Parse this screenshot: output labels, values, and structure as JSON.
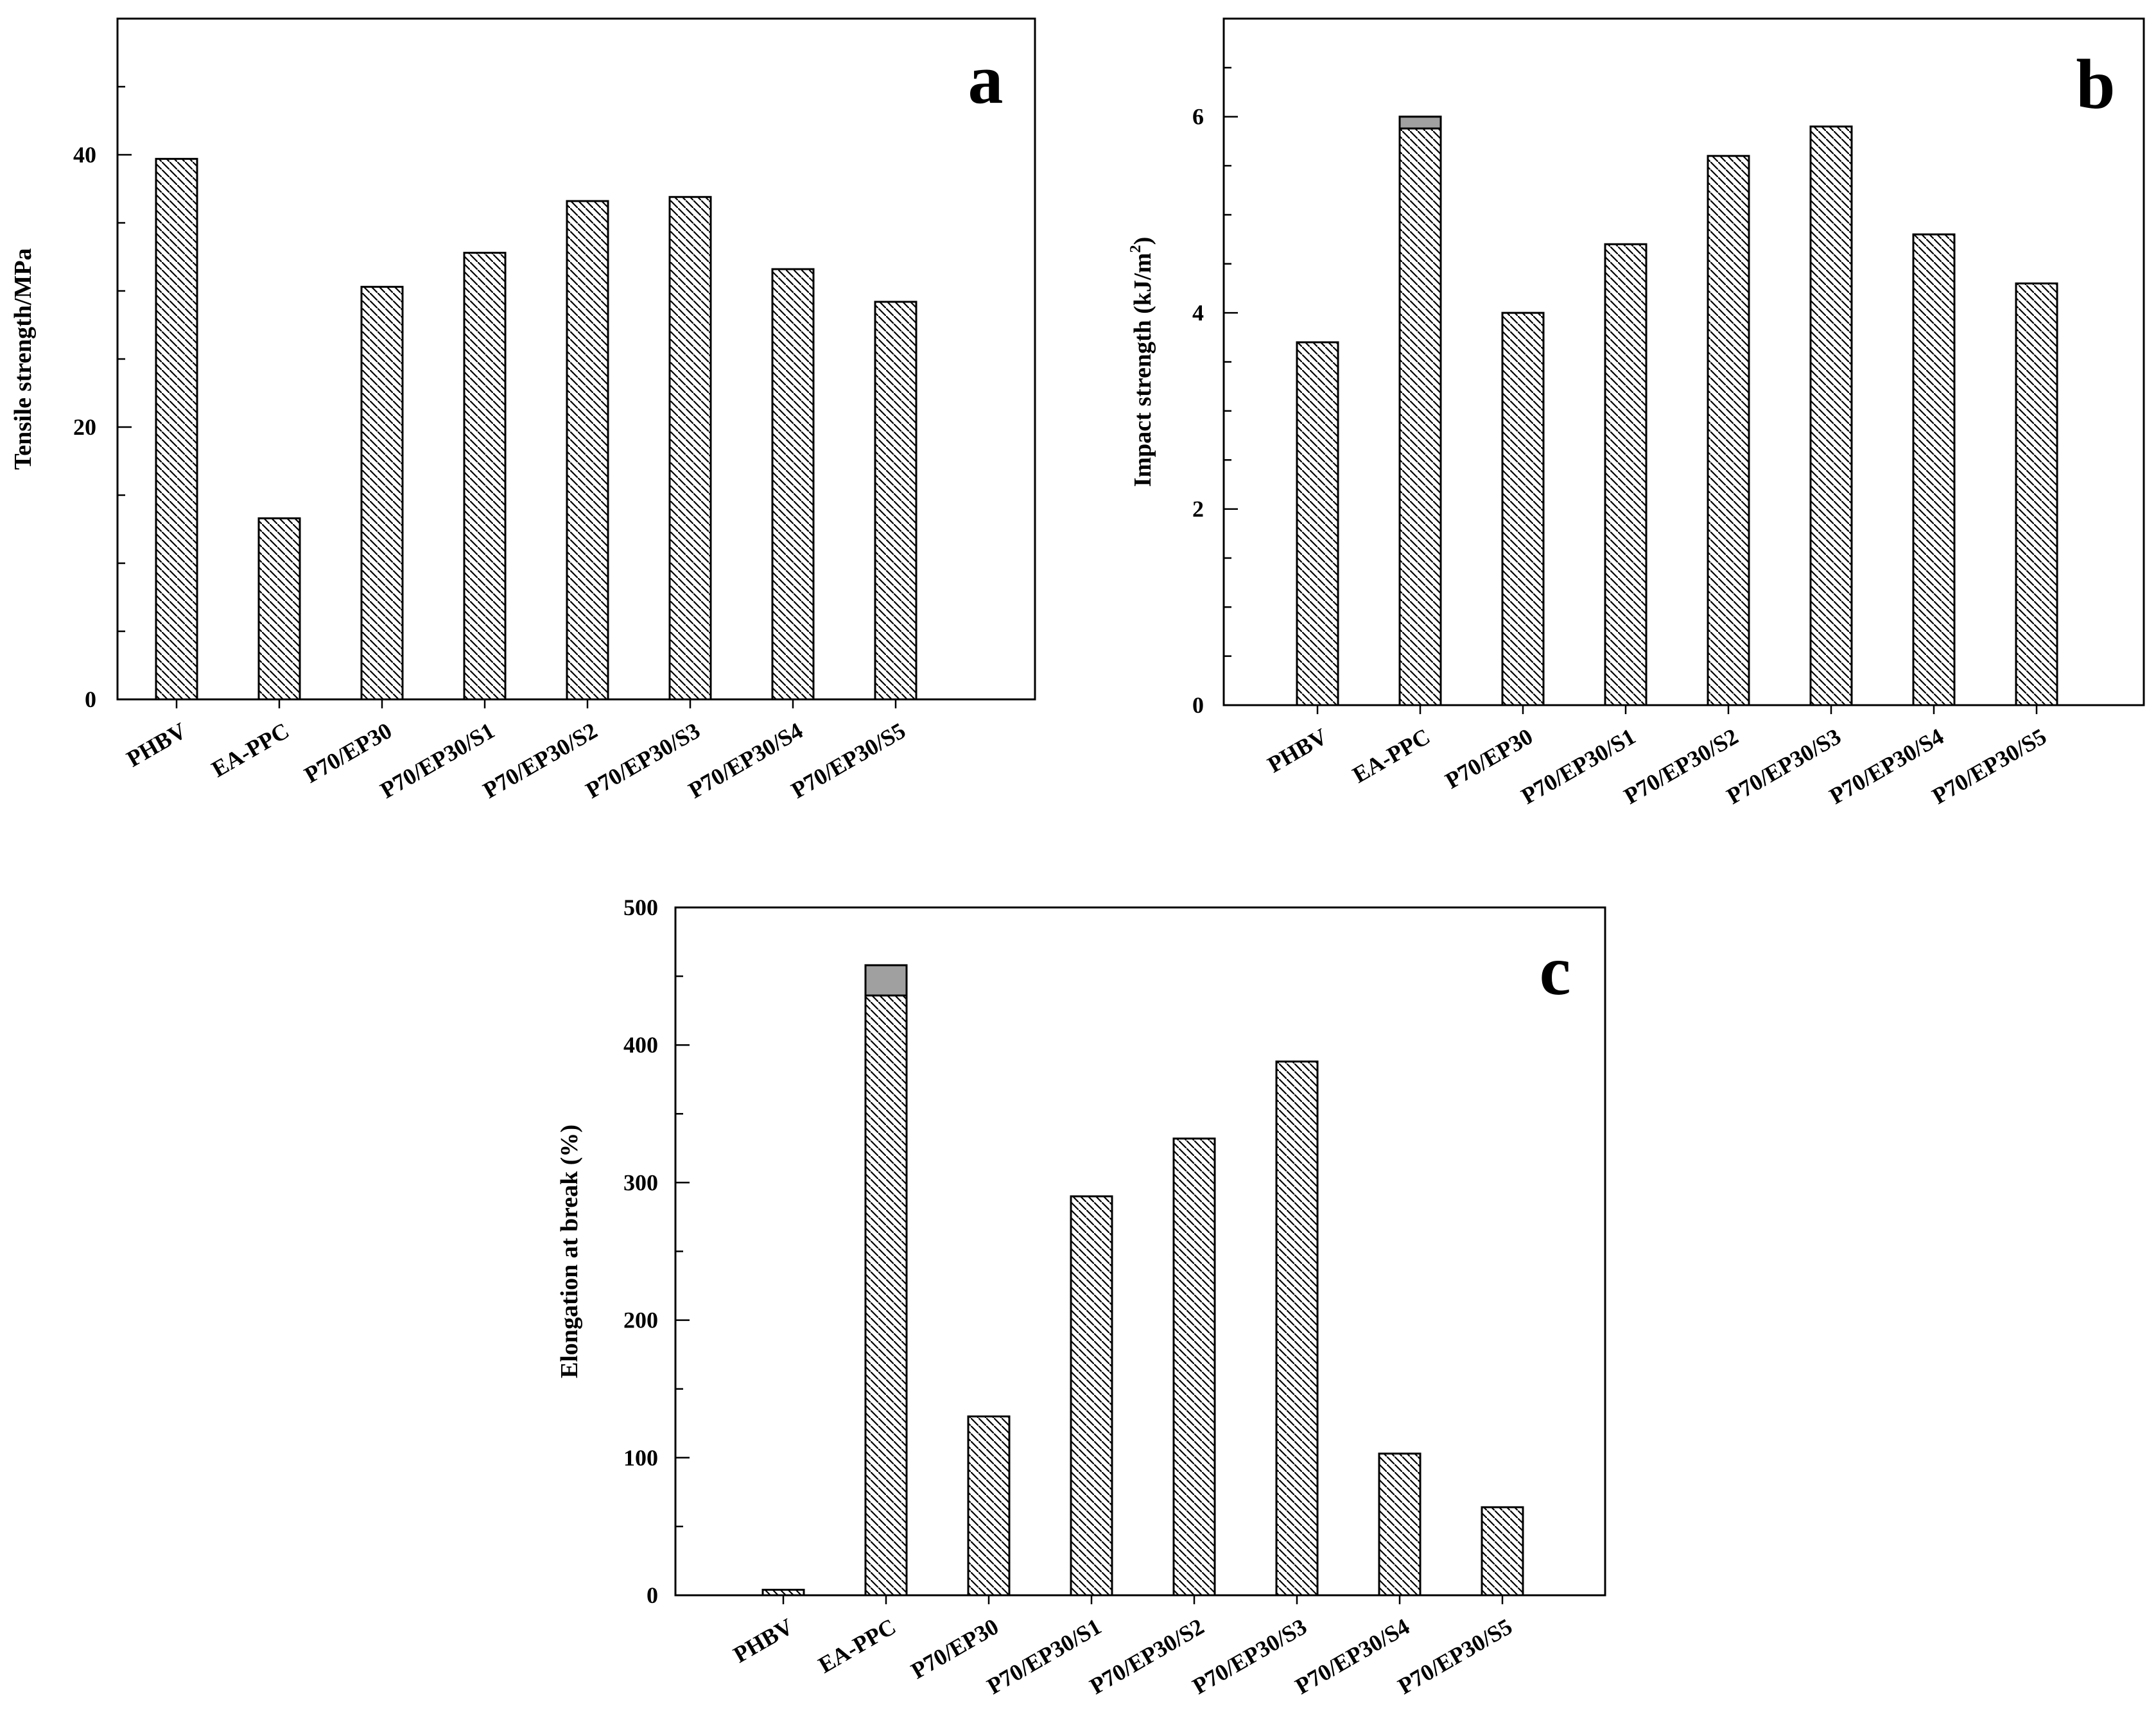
{
  "figure": {
    "style": {
      "bar_fill": "#ffffff",
      "hatch_color": "#000000",
      "cap_shade": "#a0a0a0",
      "axis_color": "#000000"
    }
  },
  "chart_data": [
    {
      "id": "a",
      "type": "bar",
      "panel_label": "a",
      "ylabel": "Tensile strength/MPa",
      "xlabel": "",
      "categories": [
        "PHBV",
        "EA-PPC",
        "P70/EP30",
        "P70/EP30/S1",
        "P70/EP30/S2",
        "P70/EP30/S3",
        "P70/EP30/S4",
        "P70/EP30/S5"
      ],
      "values": [
        39.7,
        13.3,
        30.3,
        32.8,
        36.6,
        36.9,
        31.6,
        29.2
      ],
      "ylim": [
        0,
        50
      ],
      "yticks_major": [
        0,
        20,
        40
      ],
      "yticks_minor_step": 5,
      "yticklabels": [
        "0",
        "20",
        "40"
      ],
      "shaded_cap": null
    },
    {
      "id": "b",
      "type": "bar",
      "panel_label": "b",
      "ylabel": "Impact strength (kJ/m",
      "ylabel_superscript": "2",
      "ylabel_suffix": ")",
      "xlabel": "",
      "categories": [
        "PHBV",
        "EA-PPC",
        "P70/EP30",
        "P70/EP30/S1",
        "P70/EP30/S2",
        "P70/EP30/S3",
        "P70/EP30/S4",
        "P70/EP30/S5"
      ],
      "values": [
        3.7,
        6.0,
        4.0,
        4.7,
        5.6,
        5.9,
        4.8,
        4.3
      ],
      "ylim": [
        0,
        7
      ],
      "yticks_major": [
        0,
        2,
        4,
        6
      ],
      "yticks_minor_step": 0.5,
      "yticklabels": [
        "0",
        "2",
        "4",
        "6"
      ],
      "shaded_cap": {
        "category": "EA-PPC",
        "from": 5.88,
        "to": 6.0
      }
    },
    {
      "id": "c",
      "type": "bar",
      "panel_label": "c",
      "ylabel": "Elongation at break (%)",
      "xlabel": "",
      "categories": [
        "PHBV",
        "EA-PPC",
        "P70/EP30",
        "P70/EP30/S1",
        "P70/EP30/S2",
        "P70/EP30/S3",
        "P70/EP30/S4",
        "P70/EP30/S5"
      ],
      "values": [
        4,
        458,
        130,
        290,
        332,
        388,
        103,
        64
      ],
      "ylim": [
        0,
        500
      ],
      "yticks_major": [
        0,
        100,
        200,
        300,
        400,
        500
      ],
      "yticks_minor_step": 50,
      "yticklabels": [
        "0",
        "100",
        "200",
        "300",
        "400",
        "500"
      ],
      "shaded_cap": {
        "category": "EA-PPC",
        "from": 436,
        "to": 458
      }
    }
  ]
}
